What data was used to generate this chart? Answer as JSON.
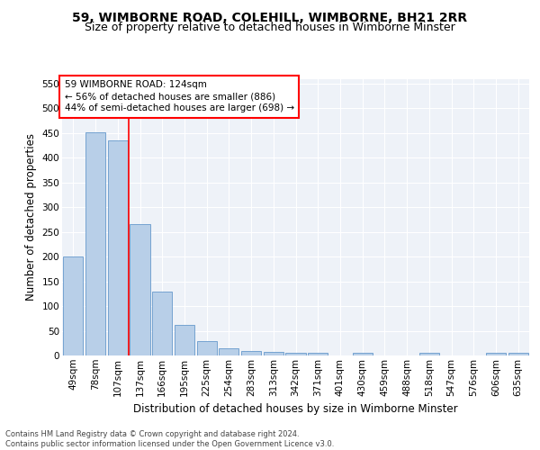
{
  "title": "59, WIMBORNE ROAD, COLEHILL, WIMBORNE, BH21 2RR",
  "subtitle": "Size of property relative to detached houses in Wimborne Minster",
  "xlabel": "Distribution of detached houses by size in Wimborne Minster",
  "ylabel": "Number of detached properties",
  "categories": [
    "49sqm",
    "78sqm",
    "107sqm",
    "137sqm",
    "166sqm",
    "195sqm",
    "225sqm",
    "254sqm",
    "283sqm",
    "313sqm",
    "342sqm",
    "371sqm",
    "401sqm",
    "430sqm",
    "459sqm",
    "488sqm",
    "518sqm",
    "547sqm",
    "576sqm",
    "606sqm",
    "635sqm"
  ],
  "values": [
    200,
    452,
    435,
    265,
    129,
    62,
    30,
    15,
    10,
    7,
    5,
    5,
    0,
    5,
    0,
    0,
    5,
    0,
    0,
    5,
    5
  ],
  "bar_color": "#b8cfe8",
  "bar_edge_color": "#6699cc",
  "red_line_x": 2.5,
  "annotation_text": "59 WIMBORNE ROAD: 124sqm\n← 56% of detached houses are smaller (886)\n44% of semi-detached houses are larger (698) →",
  "annotation_box_color": "white",
  "annotation_box_edge_color": "red",
  "footer_text": "Contains HM Land Registry data © Crown copyright and database right 2024.\nContains public sector information licensed under the Open Government Licence v3.0.",
  "ylim": [
    0,
    560
  ],
  "yticks": [
    0,
    50,
    100,
    150,
    200,
    250,
    300,
    350,
    400,
    450,
    500,
    550
  ],
  "bg_color": "#eef2f8",
  "grid_color": "white",
  "title_fontsize": 10,
  "subtitle_fontsize": 9,
  "tick_fontsize": 7.5,
  "ylabel_fontsize": 8.5,
  "xlabel_fontsize": 8.5,
  "annotation_fontsize": 7.5,
  "footer_fontsize": 6
}
